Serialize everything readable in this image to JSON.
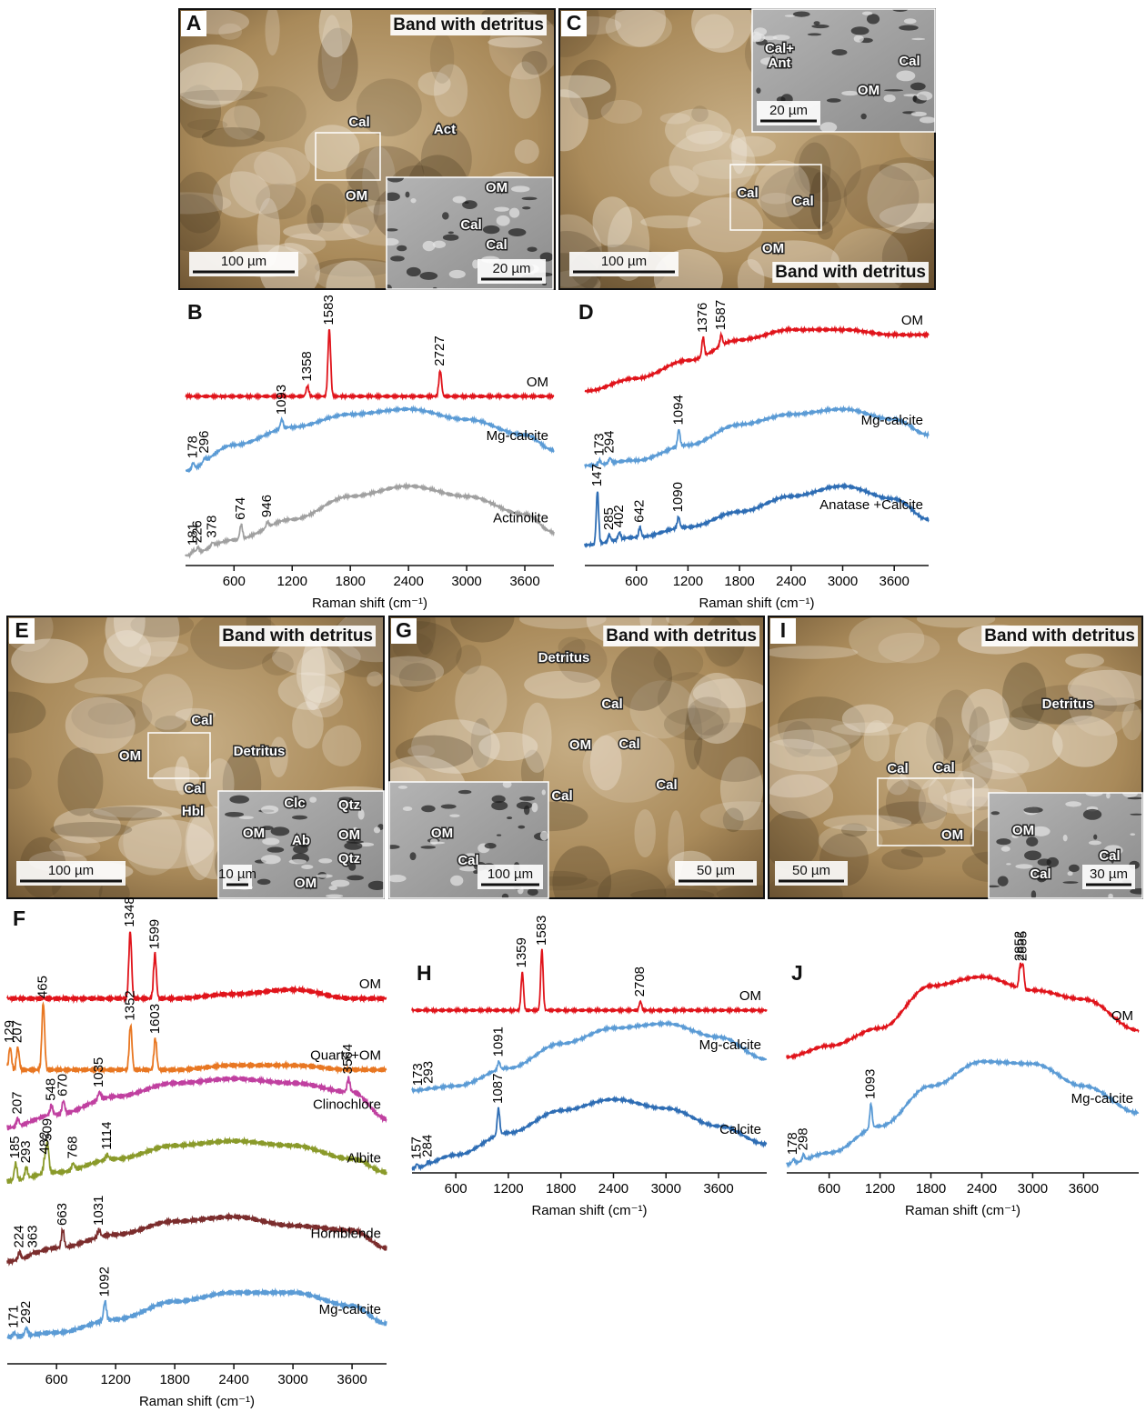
{
  "photos": [
    {
      "letter": "A",
      "title": "Band with detritus",
      "labels": [
        "Cal",
        "Act",
        "OM"
      ],
      "scale": "100 µm",
      "inset": {
        "labels": [
          "OM",
          "Cal",
          "Cal"
        ],
        "scale": "20 µm"
      }
    },
    {
      "letter": "C",
      "title": "Band with detritus",
      "labels": [
        "Cal",
        "Cal",
        "OM"
      ],
      "scale": "100 µm",
      "inset": {
        "labels": [
          "Cal+",
          "Ant",
          "Cal",
          "OM"
        ],
        "scale": "20 µm"
      }
    },
    {
      "letter": "E",
      "title": "Band with detritus",
      "labels": [
        "Cal",
        "OM",
        "Detritus",
        "Cal",
        "Hbl"
      ],
      "scale": "100 µm",
      "inset": {
        "labels": [
          "Clc",
          "Qtz",
          "OM",
          "Ab",
          "OM",
          "Qtz",
          "OM"
        ],
        "scale": "10 µm"
      }
    },
    {
      "letter": "G",
      "title": "Band with detritus",
      "labels": [
        "Detritus",
        "Cal",
        "OM",
        "Cal",
        "Cal",
        "Cal"
      ],
      "scale": "50 µm",
      "inset": {
        "labels": [
          "OM",
          "Cal"
        ],
        "scale": "100 µm"
      }
    },
    {
      "letter": "I",
      "title": "Band with detritus",
      "labels": [
        "Detritus",
        "Cal",
        "Cal",
        "OM"
      ],
      "scale": "50 µm",
      "inset": {
        "labels": [
          "OM",
          "Cal",
          "Cal"
        ],
        "scale": "30 µm"
      }
    }
  ],
  "chart_data": [
    {
      "type": "line",
      "label": "B",
      "xlabel": "Raman shift (cm⁻¹)",
      "xlim": [
        100,
        3900
      ],
      "xticks": [
        600,
        1200,
        1800,
        2400,
        3000,
        3600
      ],
      "ylim": [
        0,
        100
      ],
      "x": [
        100,
        600,
        1200,
        1800,
        2400,
        3000,
        3600,
        3900
      ],
      "series": [
        {
          "name": "OM",
          "color": "#e0141b",
          "values": [
            66,
            66,
            66,
            66,
            66,
            66,
            66,
            66
          ],
          "peaks": [
            1358,
            1583,
            2727
          ],
          "peak_tops": [
            70,
            92,
            76
          ]
        },
        {
          "name": "Mg-calcite",
          "color": "#5b9bd5",
          "values": [
            37,
            47,
            54,
            59,
            61,
            57,
            51,
            45
          ],
          "peaks": [
            178,
            296,
            1093
          ],
          "peak_tops": [
            40,
            42,
            57
          ]
        },
        {
          "name": "Actinolite",
          "color": "#a0a0a0",
          "values": [
            4,
            10,
            18,
            27,
            31,
            27,
            20,
            13
          ],
          "peaks": [
            181,
            226,
            378,
            674,
            946
          ],
          "peak_tops": [
            6,
            7,
            9,
            16,
            17
          ]
        }
      ]
    },
    {
      "type": "line",
      "label": "D",
      "xlabel": "Raman shift (cm⁻¹)",
      "xlim": [
        0,
        4000
      ],
      "xticks": [
        600,
        1200,
        1800,
        2400,
        3000,
        3600
      ],
      "ylim": [
        0,
        100
      ],
      "x": [
        0,
        600,
        1200,
        1800,
        2400,
        3000,
        3600,
        4000
      ],
      "series": [
        {
          "name": "OM",
          "color": "#e0141b",
          "values": [
            68,
            73,
            80,
            88,
            92,
            92,
            90,
            90
          ],
          "peaks": [
            1376,
            1587
          ],
          "peak_tops": [
            89,
            90
          ]
        },
        {
          "name": "Mg-calcite",
          "color": "#5b9bd5",
          "values": [
            39,
            41,
            47,
            55,
            59,
            61,
            57,
            51
          ],
          "peaks": [
            173,
            294,
            1094
          ],
          "peak_tops": [
            41,
            42,
            53
          ]
        },
        {
          "name": "Anatase +Calcite",
          "color": "#2e6db4",
          "values": [
            8,
            11,
            15,
            21,
            27,
            31,
            26,
            18
          ],
          "peaks": [
            147,
            285,
            402,
            642,
            1090
          ],
          "peak_tops": [
            29,
            12,
            13,
            15,
            19
          ]
        }
      ]
    },
    {
      "type": "line",
      "label": "F",
      "xlabel": "Raman shift (cm⁻¹)",
      "xlim": [
        100,
        3950
      ],
      "xticks": [
        600,
        1200,
        1800,
        2400,
        3000,
        3600
      ],
      "ylim": [
        0,
        100
      ],
      "x": [
        100,
        600,
        1200,
        1800,
        2400,
        3000,
        3600,
        3950
      ],
      "series": [
        {
          "name": "OM",
          "color": "#e0141b",
          "values": [
            82,
            82,
            82,
            82,
            83,
            84,
            82,
            82
          ],
          "peaks": [
            1348,
            1599
          ],
          "peak_tops": [
            97,
            92
          ]
        },
        {
          "name": "Quartz+OM",
          "color": "#e87722",
          "values": [
            66,
            66,
            66,
            66,
            67,
            67,
            66,
            66
          ],
          "peaks": [
            129,
            207,
            465,
            1352,
            1603
          ],
          "peak_tops": [
            71,
            71,
            81,
            76,
            73
          ]
        },
        {
          "name": "Clinochlore",
          "color": "#c040a0",
          "values": [
            53,
            56,
            60,
            63,
            64,
            63,
            61,
            55
          ],
          "peaks": [
            207,
            548,
            670,
            1035,
            3564
          ],
          "peak_tops": [
            55,
            58,
            59,
            61,
            64
          ]
        },
        {
          "name": "Albite",
          "color": "#8a9a2a",
          "values": [
            41,
            43,
            46,
            49,
            50,
            49,
            46,
            43
          ],
          "peaks": [
            185,
            293,
            482,
            509,
            768,
            1114
          ],
          "peak_tops": [
            45,
            44,
            46,
            49,
            45,
            47
          ]
        },
        {
          "name": "Hornblende",
          "color": "#7b2d2d",
          "values": [
            23,
            26,
            29,
            32,
            33,
            31,
            30,
            26
          ],
          "peaks": [
            224,
            363,
            663,
            1031
          ],
          "peak_tops": [
            25,
            25,
            30,
            30
          ]
        },
        {
          "name": "Mg-calcite",
          "color": "#5b9bd5",
          "values": [
            6,
            7,
            10,
            14,
            16,
            16,
            13,
            9
          ],
          "peaks": [
            171,
            292,
            1092
          ],
          "peak_tops": [
            7,
            8,
            14
          ]
        }
      ]
    },
    {
      "type": "line",
      "label": "H",
      "xlabel": "Raman shift (cm⁻¹)",
      "xlim": [
        100,
        4150
      ],
      "xticks": [
        600,
        1200,
        1800,
        2400,
        3000,
        3600
      ],
      "ylim": [
        0,
        100
      ],
      "x": [
        100,
        600,
        1200,
        1800,
        2400,
        3000,
        3600,
        4150
      ],
      "series": [
        {
          "name": "OM",
          "color": "#e0141b",
          "values": [
            73,
            73,
            73,
            73,
            73,
            73,
            73,
            73
          ],
          "peaks": [
            1359,
            1583,
            2708
          ],
          "peak_tops": [
            90,
            100,
            77
          ]
        },
        {
          "name": "Mg-calcite",
          "color": "#5b9bd5",
          "values": [
            37,
            39,
            47,
            58,
            65,
            67,
            61,
            51
          ],
          "peaks": [
            173,
            293,
            1091
          ],
          "peak_tops": [
            37,
            38,
            50
          ]
        },
        {
          "name": "Calcite",
          "color": "#2e6db4",
          "values": [
            2,
            8,
            18,
            28,
            33,
            29,
            21,
            13
          ],
          "peaks": [
            157,
            284,
            1087
          ],
          "peak_tops": [
            4,
            5,
            29
          ]
        }
      ]
    },
    {
      "type": "line",
      "label": "J",
      "xlabel": "Raman shift (cm⁻¹)",
      "xlim": [
        100,
        4250
      ],
      "xticks": [
        600,
        1200,
        1800,
        2400,
        3000,
        3600
      ],
      "ylim": [
        0,
        100
      ],
      "x": [
        100,
        600,
        1200,
        1800,
        2400,
        3000,
        3600,
        4250
      ],
      "series": [
        {
          "name": "OM",
          "color": "#e0141b",
          "values": [
            52,
            57,
            65,
            84,
            88,
            82,
            78,
            64
          ],
          "peaks": [
            2852,
            2885
          ],
          "peak_tops": [
            93,
            93
          ]
        },
        {
          "name": "Mg-calcite",
          "color": "#5b9bd5",
          "values": [
            4,
            9,
            21,
            39,
            50,
            49,
            39,
            27
          ],
          "peaks": [
            178,
            298,
            1093
          ],
          "peak_tops": [
            6,
            8,
            31
          ]
        }
      ]
    }
  ]
}
